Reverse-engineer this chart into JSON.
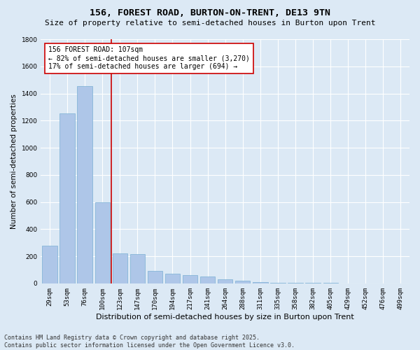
{
  "title": "156, FOREST ROAD, BURTON-ON-TRENT, DE13 9TN",
  "subtitle": "Size of property relative to semi-detached houses in Burton upon Trent",
  "xlabel": "Distribution of semi-detached houses by size in Burton upon Trent",
  "ylabel": "Number of semi-detached properties",
  "categories": [
    "29sqm",
    "53sqm",
    "76sqm",
    "100sqm",
    "123sqm",
    "147sqm",
    "170sqm",
    "194sqm",
    "217sqm",
    "241sqm",
    "264sqm",
    "288sqm",
    "311sqm",
    "335sqm",
    "358sqm",
    "382sqm",
    "405sqm",
    "429sqm",
    "452sqm",
    "476sqm",
    "499sqm"
  ],
  "values": [
    280,
    1255,
    1455,
    600,
    220,
    215,
    90,
    70,
    63,
    50,
    28,
    18,
    12,
    5,
    3,
    2,
    2,
    1,
    1,
    1,
    1
  ],
  "bar_color": "#aec6e8",
  "bar_edge_color": "#7aafd4",
  "highlight_index": 3,
  "highlight_line_color": "#cc0000",
  "annotation_text": "156 FOREST ROAD: 107sqm\n← 82% of semi-detached houses are smaller (3,270)\n17% of semi-detached houses are larger (694) →",
  "annotation_box_color": "#ffffff",
  "annotation_border_color": "#cc0000",
  "ylim": [
    0,
    1800
  ],
  "yticks": [
    0,
    200,
    400,
    600,
    800,
    1000,
    1200,
    1400,
    1600,
    1800
  ],
  "background_color": "#dce9f5",
  "plot_bg_color": "#dce9f5",
  "grid_color": "#ffffff",
  "footer": "Contains HM Land Registry data © Crown copyright and database right 2025.\nContains public sector information licensed under the Open Government Licence v3.0.",
  "title_fontsize": 9.5,
  "subtitle_fontsize": 8,
  "xlabel_fontsize": 8,
  "ylabel_fontsize": 7.5,
  "tick_fontsize": 6.5,
  "annotation_fontsize": 7,
  "footer_fontsize": 6
}
